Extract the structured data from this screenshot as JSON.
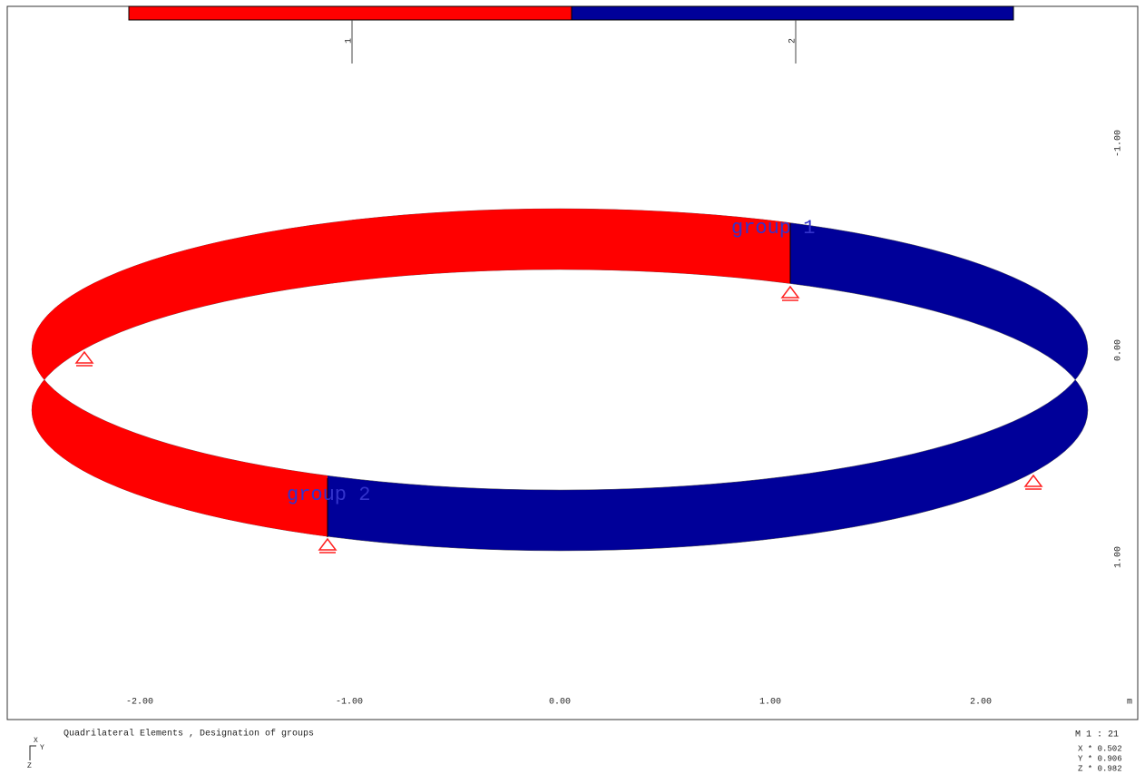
{
  "legend": {
    "items": [
      {
        "label": "1",
        "color": "#ff0000"
      },
      {
        "label": "2",
        "color": "#000099"
      }
    ]
  },
  "groups": [
    "group 1",
    "group 2"
  ],
  "x_axis": {
    "ticks": [
      "-2.00",
      "-1.00",
      "0.00",
      "1.00",
      "2.00"
    ],
    "unit": "m"
  },
  "y_axis": {
    "ticks": [
      "-1.00",
      "0.00",
      "1.00"
    ]
  },
  "footer": {
    "title": "Quadrilateral Elements , Designation of groups",
    "scale": "M 1 : 21",
    "views": [
      "X * 0.502",
      "Y * 0.906",
      "Z * 0.982"
    ]
  },
  "triad": [
    "X",
    "Y",
    "Z"
  ]
}
